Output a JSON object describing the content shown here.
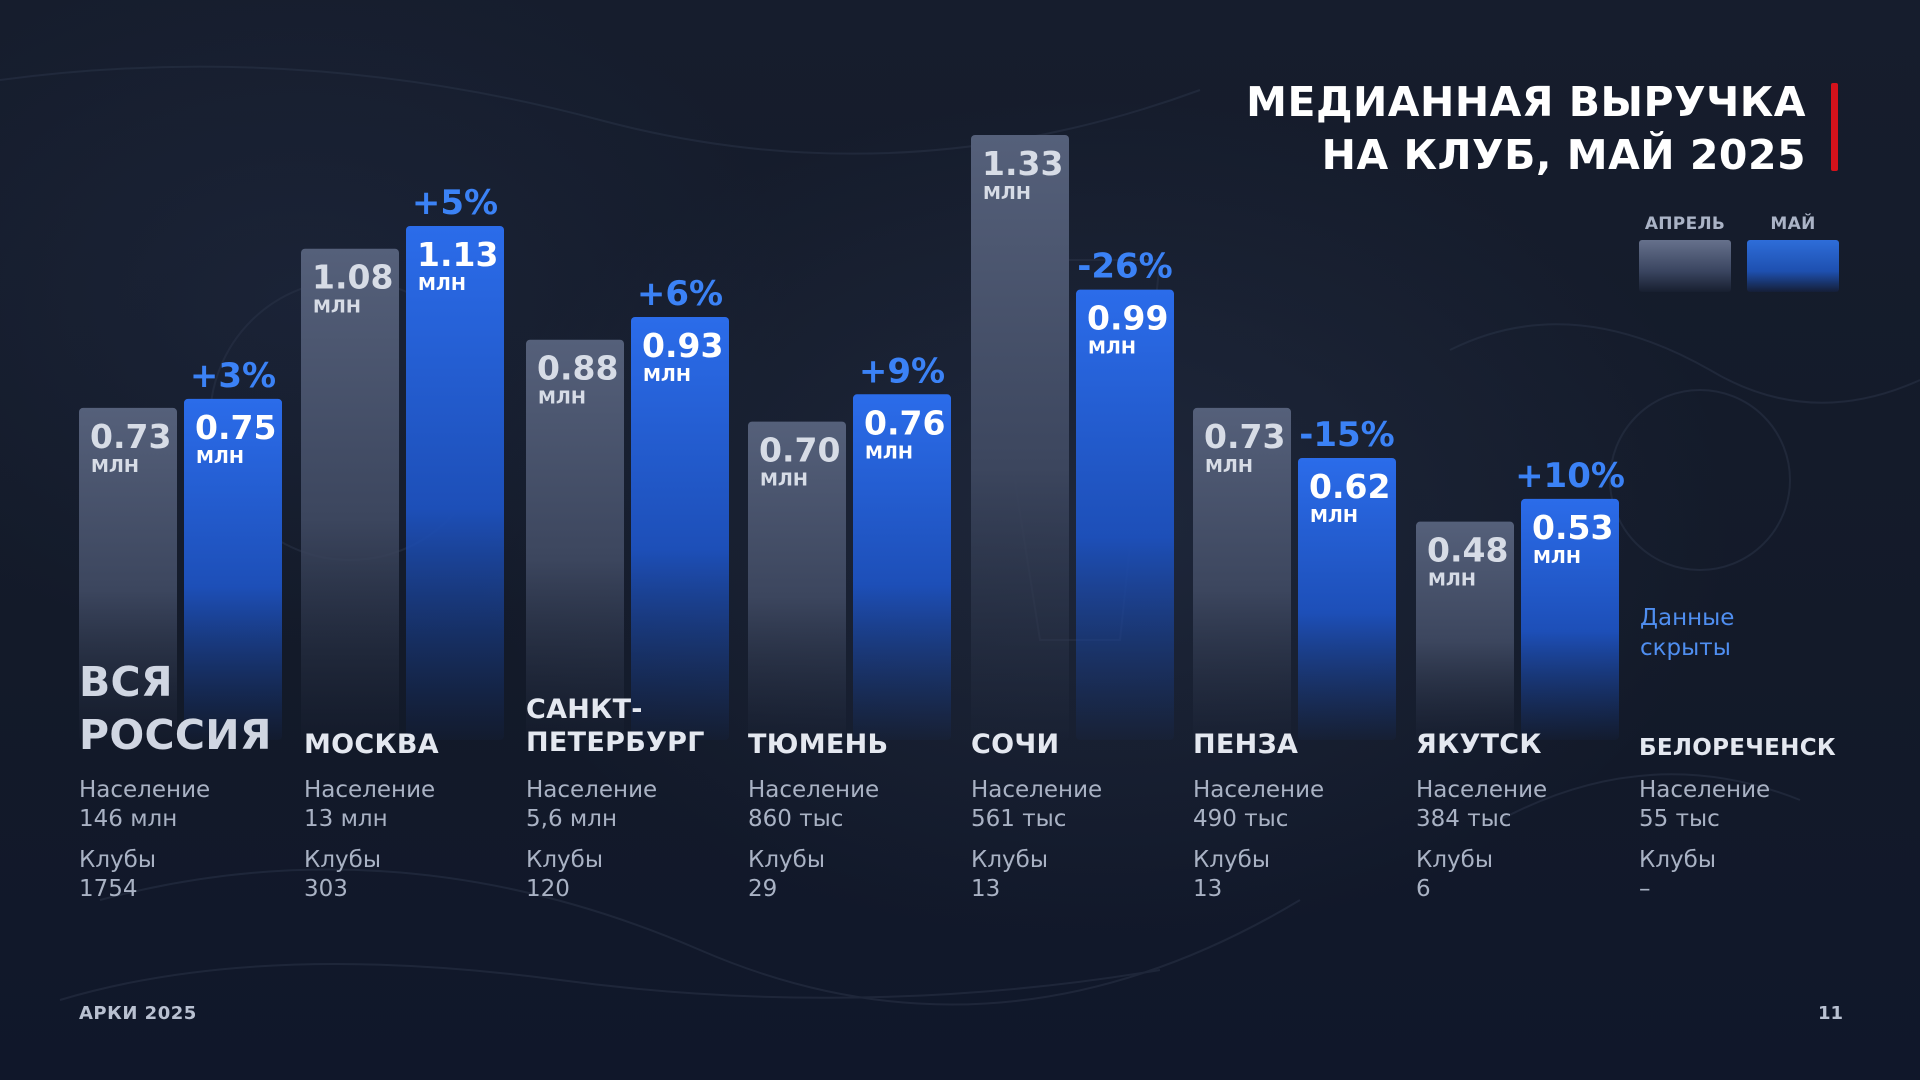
{
  "title": {
    "line1": "МЕДИАННАЯ ВЫРУЧКА",
    "line2": "НА КЛУБ, МАЙ 2025"
  },
  "legend": {
    "april": "АПРЕЛЬ",
    "may": "МАЙ"
  },
  "colors": {
    "background": "#151c2c",
    "april_bar": "#4a5570",
    "may_bar": "#2166e0",
    "change_text": "#3b82f6",
    "accent_red": "#d4121b",
    "hidden_note": "#4f8ef0"
  },
  "chart_data": {
    "type": "bar",
    "title": "МЕДИАННАЯ ВЫРУЧКА НА КЛУБ, МАЙ 2025",
    "unit": "МЛН",
    "categories": [
      "ВСЯ РОССИЯ",
      "МОСКВА",
      "САНКТ-ПЕТЕРБУРГ",
      "ТЮМЕНЬ",
      "СОЧИ",
      "ПЕНЗА",
      "ЯКУТСК",
      "БЕЛОРЕЧЕНСК"
    ],
    "series": [
      {
        "name": "АПРЕЛЬ",
        "values": [
          0.73,
          1.08,
          0.88,
          0.7,
          1.33,
          0.73,
          0.48,
          null
        ],
        "labels": [
          "0.73",
          "1.08",
          "0.88",
          "0.70",
          "1.33",
          "0.73",
          "0.48",
          ""
        ]
      },
      {
        "name": "МАЙ",
        "values": [
          0.75,
          1.13,
          0.93,
          0.76,
          0.99,
          0.62,
          0.53,
          null
        ],
        "labels": [
          "0.75",
          "1.13",
          "0.93",
          "0.76",
          "0.99",
          "0.62",
          "0.53",
          ""
        ]
      }
    ],
    "changes": [
      "+3%",
      "+5%",
      "+6%",
      "+9%",
      "-26%",
      "-15%",
      "+10%",
      ""
    ],
    "ylim": [
      0,
      1.33
    ],
    "legend_position": "top-right",
    "grid": false
  },
  "cities": [
    {
      "name": "ВСЯ РОССИЯ",
      "name_lines": [
        "ВСЯ",
        "РОССИЯ"
      ],
      "population_label": "Население",
      "population": "146 млн",
      "clubs_label": "Клубы",
      "clubs": "1754"
    },
    {
      "name": "МОСКВА",
      "name_lines": [
        "МОСКВА"
      ],
      "population_label": "Население",
      "population": "13 млн",
      "clubs_label": "Клубы",
      "clubs": "303"
    },
    {
      "name": "САНКТ-ПЕТЕРБУРГ",
      "name_lines": [
        "САНКТ-",
        "ПЕТЕРБУРГ"
      ],
      "population_label": "Население",
      "population": "5,6 млн",
      "clubs_label": "Клубы",
      "clubs": "120"
    },
    {
      "name": "ТЮМЕНЬ",
      "name_lines": [
        "ТЮМЕНЬ"
      ],
      "population_label": "Население",
      "population": "860 тыс",
      "clubs_label": "Клубы",
      "clubs": "29"
    },
    {
      "name": "СОЧИ",
      "name_lines": [
        "СОЧИ"
      ],
      "population_label": "Население",
      "population": "561 тыс",
      "clubs_label": "Клубы",
      "clubs": "13"
    },
    {
      "name": "ПЕНЗА",
      "name_lines": [
        "ПЕНЗА"
      ],
      "population_label": "Население",
      "population": "490 тыс",
      "clubs_label": "Клубы",
      "clubs": "13"
    },
    {
      "name": "ЯКУТСК",
      "name_lines": [
        "ЯКУТСК"
      ],
      "population_label": "Население",
      "population": "384 тыс",
      "clubs_label": "Клубы",
      "clubs": "6"
    },
    {
      "name": "БЕЛОРЕЧЕНСК",
      "name_lines": [
        "БЕЛОРЕЧЕНСК"
      ],
      "population_label": "Население",
      "population": "55 тыс",
      "clubs_label": "Клубы",
      "clubs": "–"
    }
  ],
  "hidden_note": {
    "line1": "Данные",
    "line2": "скрыты"
  },
  "footer": {
    "left": "АРКИ 2025",
    "page_number": "11"
  }
}
